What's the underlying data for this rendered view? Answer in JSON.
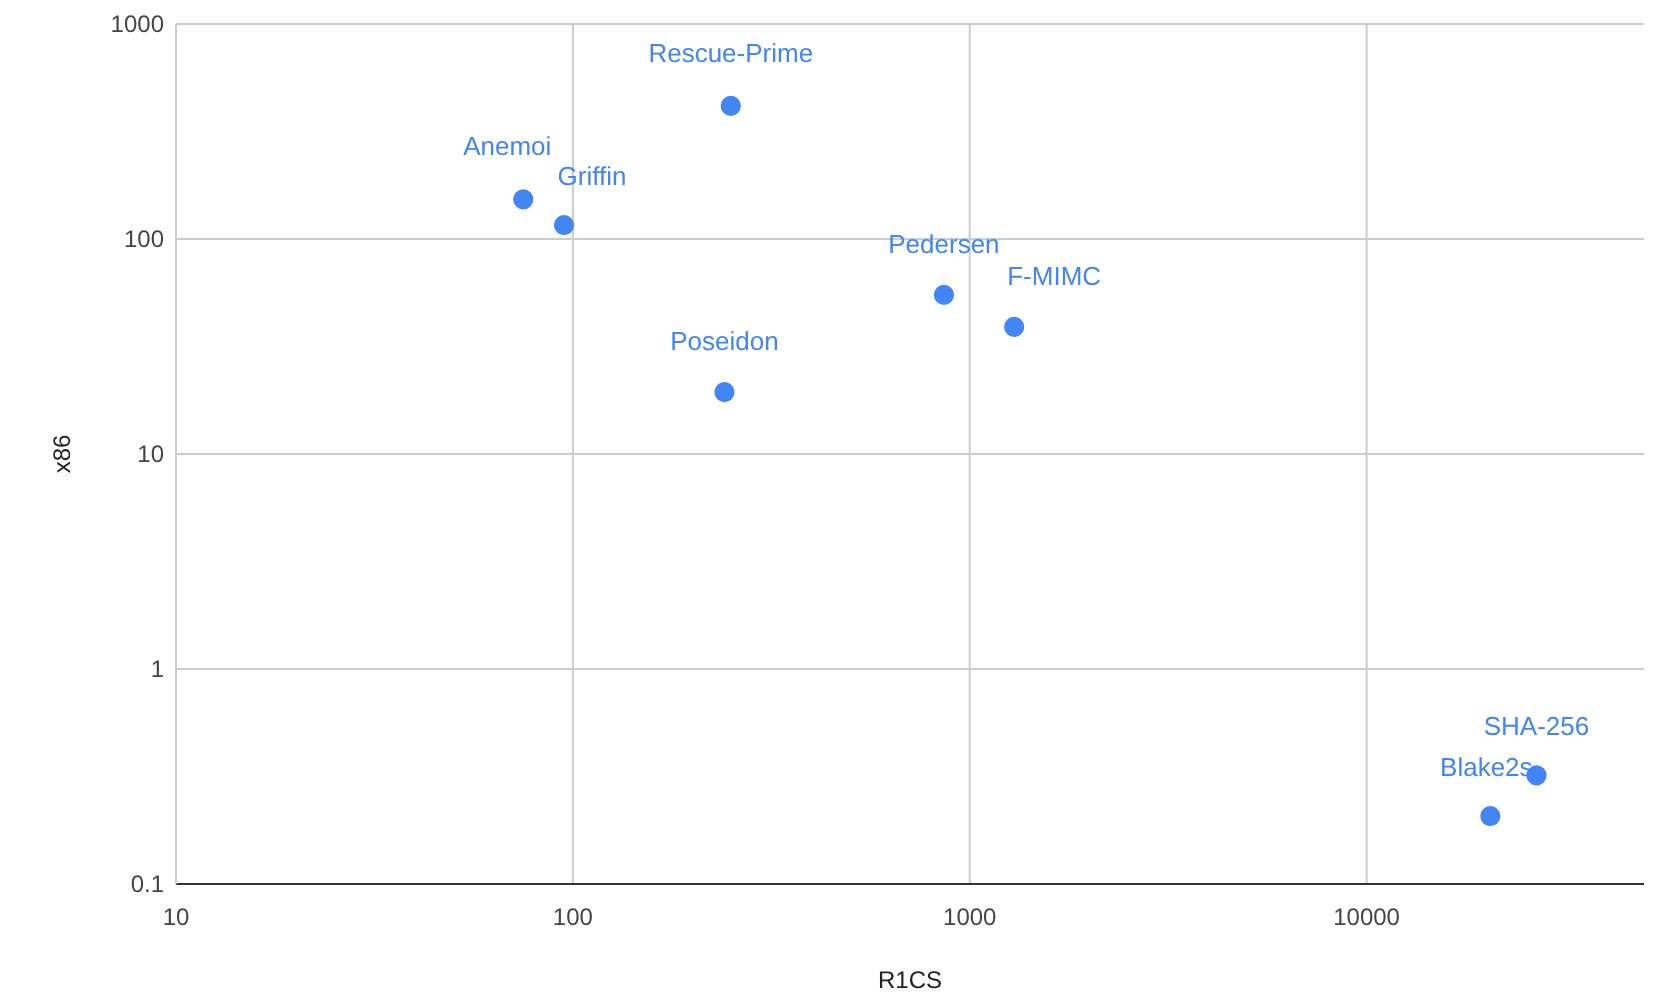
{
  "chart_data": {
    "type": "scatter",
    "xlabel": "R1CS",
    "ylabel": "x86",
    "log": "xy",
    "grid": true,
    "marker": "circle",
    "xlim": [
      10,
      50000
    ],
    "xticks": [
      10,
      100,
      1000,
      10000
    ],
    "ylim": [
      0.1,
      1000
    ],
    "yticks": [
      0.1,
      1,
      10,
      100,
      1000
    ],
    "series": [
      {
        "color": "#4285f4",
        "x": [
          250,
          75,
          95,
          241,
          861,
          1294,
          20500,
          26800
        ],
        "values": [
          416,
          153,
          116,
          19.4,
          55,
          39,
          0.207,
          0.32
        ]
      }
    ],
    "annotations": [
      {
        "text": "Rescue-Prime",
        "x": 250,
        "y": 416
      },
      {
        "text": "Anemoi",
        "x": 75,
        "y": 153
      },
      {
        "text": "Griffin",
        "x": 95,
        "y": 116
      },
      {
        "text": "Poseidon",
        "x": 241,
        "y": 19.4
      },
      {
        "text": "Pedersen",
        "x": 861,
        "y": 55
      },
      {
        "text": "F-MIMC",
        "x": 1294,
        "y": 39
      },
      {
        "text": "Blake2s",
        "x": 20500,
        "y": 0.207
      },
      {
        "text": "SHA-256",
        "x": 26800,
        "y": 0.32
      }
    ]
  }
}
